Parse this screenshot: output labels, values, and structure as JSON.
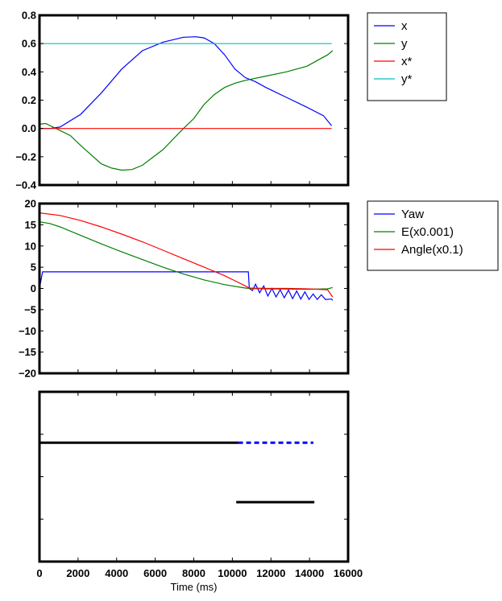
{
  "chart_data": [
    {
      "type": "line",
      "xlim": [
        0,
        15000
      ],
      "ylim": [
        -0.4,
        0.8
      ],
      "yticks": [
        0.8,
        0.6,
        0.4,
        0.2,
        0.0,
        -0.2,
        -0.4
      ],
      "ytick_labels": [
        "0.8",
        "0.6",
        "0.4",
        "0.2",
        "0.0",
        "−0.2",
        "−0.4"
      ],
      "legend_position": "outside-right-top",
      "series": [
        {
          "name": "x",
          "color": "#0000ff",
          "points": [
            [
              0,
              0.0
            ],
            [
              500,
              0.0
            ],
            [
              1000,
              0.01
            ],
            [
              2000,
              0.1
            ],
            [
              3000,
              0.25
            ],
            [
              4000,
              0.42
            ],
            [
              5000,
              0.55
            ],
            [
              6000,
              0.61
            ],
            [
              7000,
              0.645
            ],
            [
              7600,
              0.648
            ],
            [
              8000,
              0.64
            ],
            [
              8500,
              0.6
            ],
            [
              9000,
              0.52
            ],
            [
              9500,
              0.42
            ],
            [
              10000,
              0.36
            ],
            [
              10500,
              0.33
            ],
            [
              11000,
              0.29
            ],
            [
              12000,
              0.22
            ],
            [
              13000,
              0.15
            ],
            [
              13800,
              0.09
            ],
            [
              14200,
              0.02
            ]
          ]
        },
        {
          "name": "y",
          "color": "#008000",
          "points": [
            [
              0,
              0.03
            ],
            [
              300,
              0.035
            ],
            [
              800,
              0.0
            ],
            [
              1500,
              -0.05
            ],
            [
              2000,
              -0.12
            ],
            [
              3000,
              -0.25
            ],
            [
              3500,
              -0.28
            ],
            [
              4000,
              -0.295
            ],
            [
              4500,
              -0.29
            ],
            [
              5000,
              -0.26
            ],
            [
              6000,
              -0.15
            ],
            [
              7000,
              0.0
            ],
            [
              7500,
              0.07
            ],
            [
              8000,
              0.17
            ],
            [
              8500,
              0.24
            ],
            [
              9000,
              0.29
            ],
            [
              9500,
              0.32
            ],
            [
              10000,
              0.34
            ],
            [
              11000,
              0.37
            ],
            [
              12000,
              0.4
            ],
            [
              13000,
              0.44
            ],
            [
              14000,
              0.52
            ],
            [
              14250,
              0.55
            ]
          ]
        },
        {
          "name": "x*",
          "color": "#ff0000",
          "points": [
            [
              0,
              0.0
            ],
            [
              14200,
              0.0
            ]
          ]
        },
        {
          "name": "y*",
          "color": "#00bfbf",
          "points": [
            [
              0,
              0.6
            ],
            [
              14200,
              0.6
            ]
          ]
        }
      ]
    },
    {
      "type": "line",
      "xlim": [
        0,
        15000
      ],
      "ylim": [
        -20,
        20
      ],
      "yticks": [
        20,
        15,
        10,
        5,
        0,
        -5,
        -10,
        -15,
        -20
      ],
      "ytick_labels": [
        "20",
        "15",
        "10",
        "5",
        "0",
        "−5",
        "−10",
        "−15",
        "−20"
      ],
      "legend_position": "outside-right-top",
      "series": [
        {
          "name": "Yaw",
          "color": "#0000ff",
          "points": [
            [
              0,
              0
            ],
            [
              150,
              3.9
            ],
            [
              10150,
              3.9
            ],
            [
              10200,
              0
            ],
            [
              10350,
              -0.5
            ],
            [
              10500,
              1
            ],
            [
              10700,
              -1
            ],
            [
              10900,
              0.6
            ],
            [
              11100,
              -1.8
            ],
            [
              11300,
              0
            ],
            [
              11500,
              -2
            ],
            [
              11700,
              -0.3
            ],
            [
              11900,
              -2.2
            ],
            [
              12100,
              -0.4
            ],
            [
              12300,
              -2.4
            ],
            [
              12500,
              -0.6
            ],
            [
              12700,
              -2.5
            ],
            [
              12900,
              -0.8
            ],
            [
              13100,
              -2.6
            ],
            [
              13300,
              -1.3
            ],
            [
              13500,
              -2.6
            ],
            [
              13700,
              -1.5
            ],
            [
              13900,
              -2.6
            ],
            [
              14200,
              -2.5
            ],
            [
              14250,
              -2.8
            ]
          ]
        },
        {
          "name": "E(x0.001)",
          "color": "#008000",
          "points": [
            [
              0,
              15.7
            ],
            [
              500,
              15.3
            ],
            [
              1000,
              14.5
            ],
            [
              2000,
              12.5
            ],
            [
              3000,
              10.5
            ],
            [
              4000,
              8.6
            ],
            [
              5000,
              6.8
            ],
            [
              6000,
              5.0
            ],
            [
              7000,
              3.4
            ],
            [
              8000,
              2.0
            ],
            [
              9000,
              0.9
            ],
            [
              10000,
              0.1
            ],
            [
              10200,
              0.0
            ],
            [
              11000,
              -0.1
            ],
            [
              12000,
              -0.15
            ],
            [
              13000,
              -0.2
            ],
            [
              14000,
              -0.1
            ],
            [
              14250,
              0.2
            ]
          ]
        },
        {
          "name": "Angle(x0.1)",
          "color": "#ff0000",
          "points": [
            [
              0,
              17.8
            ],
            [
              1000,
              17.2
            ],
            [
              2000,
              16.0
            ],
            [
              3000,
              14.5
            ],
            [
              4000,
              12.8
            ],
            [
              5000,
              11.0
            ],
            [
              6000,
              9.0
            ],
            [
              7000,
              7.0
            ],
            [
              8000,
              5.0
            ],
            [
              9000,
              3.0
            ],
            [
              9500,
              1.8
            ],
            [
              10000,
              0.6
            ],
            [
              10200,
              0.1
            ],
            [
              11000,
              0.0
            ],
            [
              12000,
              0.0
            ],
            [
              13000,
              -0.1
            ],
            [
              14000,
              -0.3
            ],
            [
              14250,
              -2.0
            ]
          ]
        }
      ]
    },
    {
      "type": "scatter",
      "xlabel": "Time (ms)",
      "xlim": [
        0,
        16000
      ],
      "xticks": [
        0,
        2000,
        4000,
        6000,
        8000,
        10000,
        12000,
        14000,
        16000
      ],
      "xtick_labels": [
        "0",
        "2000",
        "4000",
        "6000",
        "8000",
        "10000",
        "12000",
        "14000",
        "16000"
      ],
      "ylim": [
        0,
        4
      ],
      "show_ytick_labels": false,
      "bands": [
        {
          "level": 2.8,
          "x_start": 0,
          "x_end": 10300,
          "style": "solid",
          "color": "#000000"
        },
        {
          "level": 2.8,
          "x_start": 10300,
          "x_end": 14200,
          "style": "dashed",
          "color": "#0000ff"
        },
        {
          "level": 1.4,
          "x_start": 10200,
          "x_end": 14250,
          "style": "solid",
          "color": "#000000"
        }
      ]
    }
  ]
}
